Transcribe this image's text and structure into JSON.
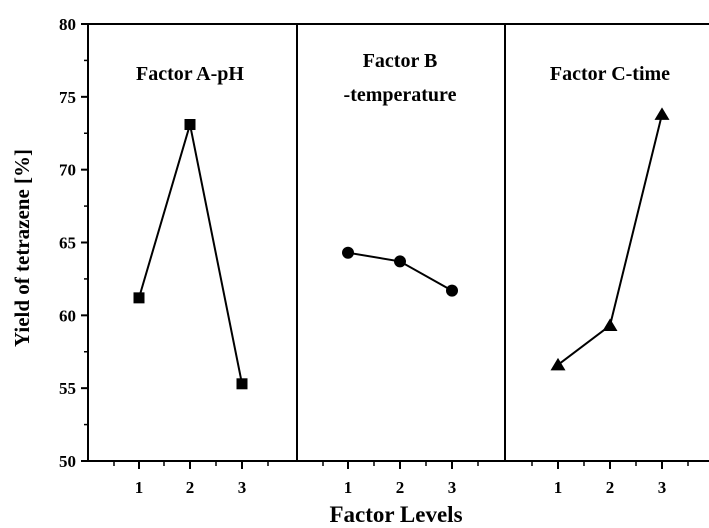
{
  "chart_data": {
    "type": "line",
    "xlabel": "Factor Levels",
    "ylabel": "Yield of tetrazene [%]",
    "ylim": [
      50,
      80
    ],
    "yticks": [
      "50",
      "55",
      "60",
      "65",
      "70",
      "75",
      "80"
    ],
    "grid": false,
    "panels": [
      {
        "title_lines": [
          "Factor A-pH"
        ],
        "marker": "square",
        "x_ticks": [
          "1",
          "2",
          "3"
        ],
        "x": [
          1,
          2,
          3
        ],
        "values": [
          61.2,
          73.1,
          55.3
        ]
      },
      {
        "title_lines": [
          "Factor B",
          "-temperature"
        ],
        "marker": "circle",
        "x_ticks": [
          "1",
          "2",
          "3"
        ],
        "x": [
          1,
          2,
          3
        ],
        "values": [
          64.3,
          63.7,
          61.7
        ]
      },
      {
        "title_lines": [
          "Factor C-time"
        ],
        "marker": "triangle",
        "x_ticks": [
          "1",
          "2",
          "3"
        ],
        "x": [
          1,
          2,
          3
        ],
        "values": [
          56.6,
          59.3,
          73.8
        ]
      }
    ]
  }
}
